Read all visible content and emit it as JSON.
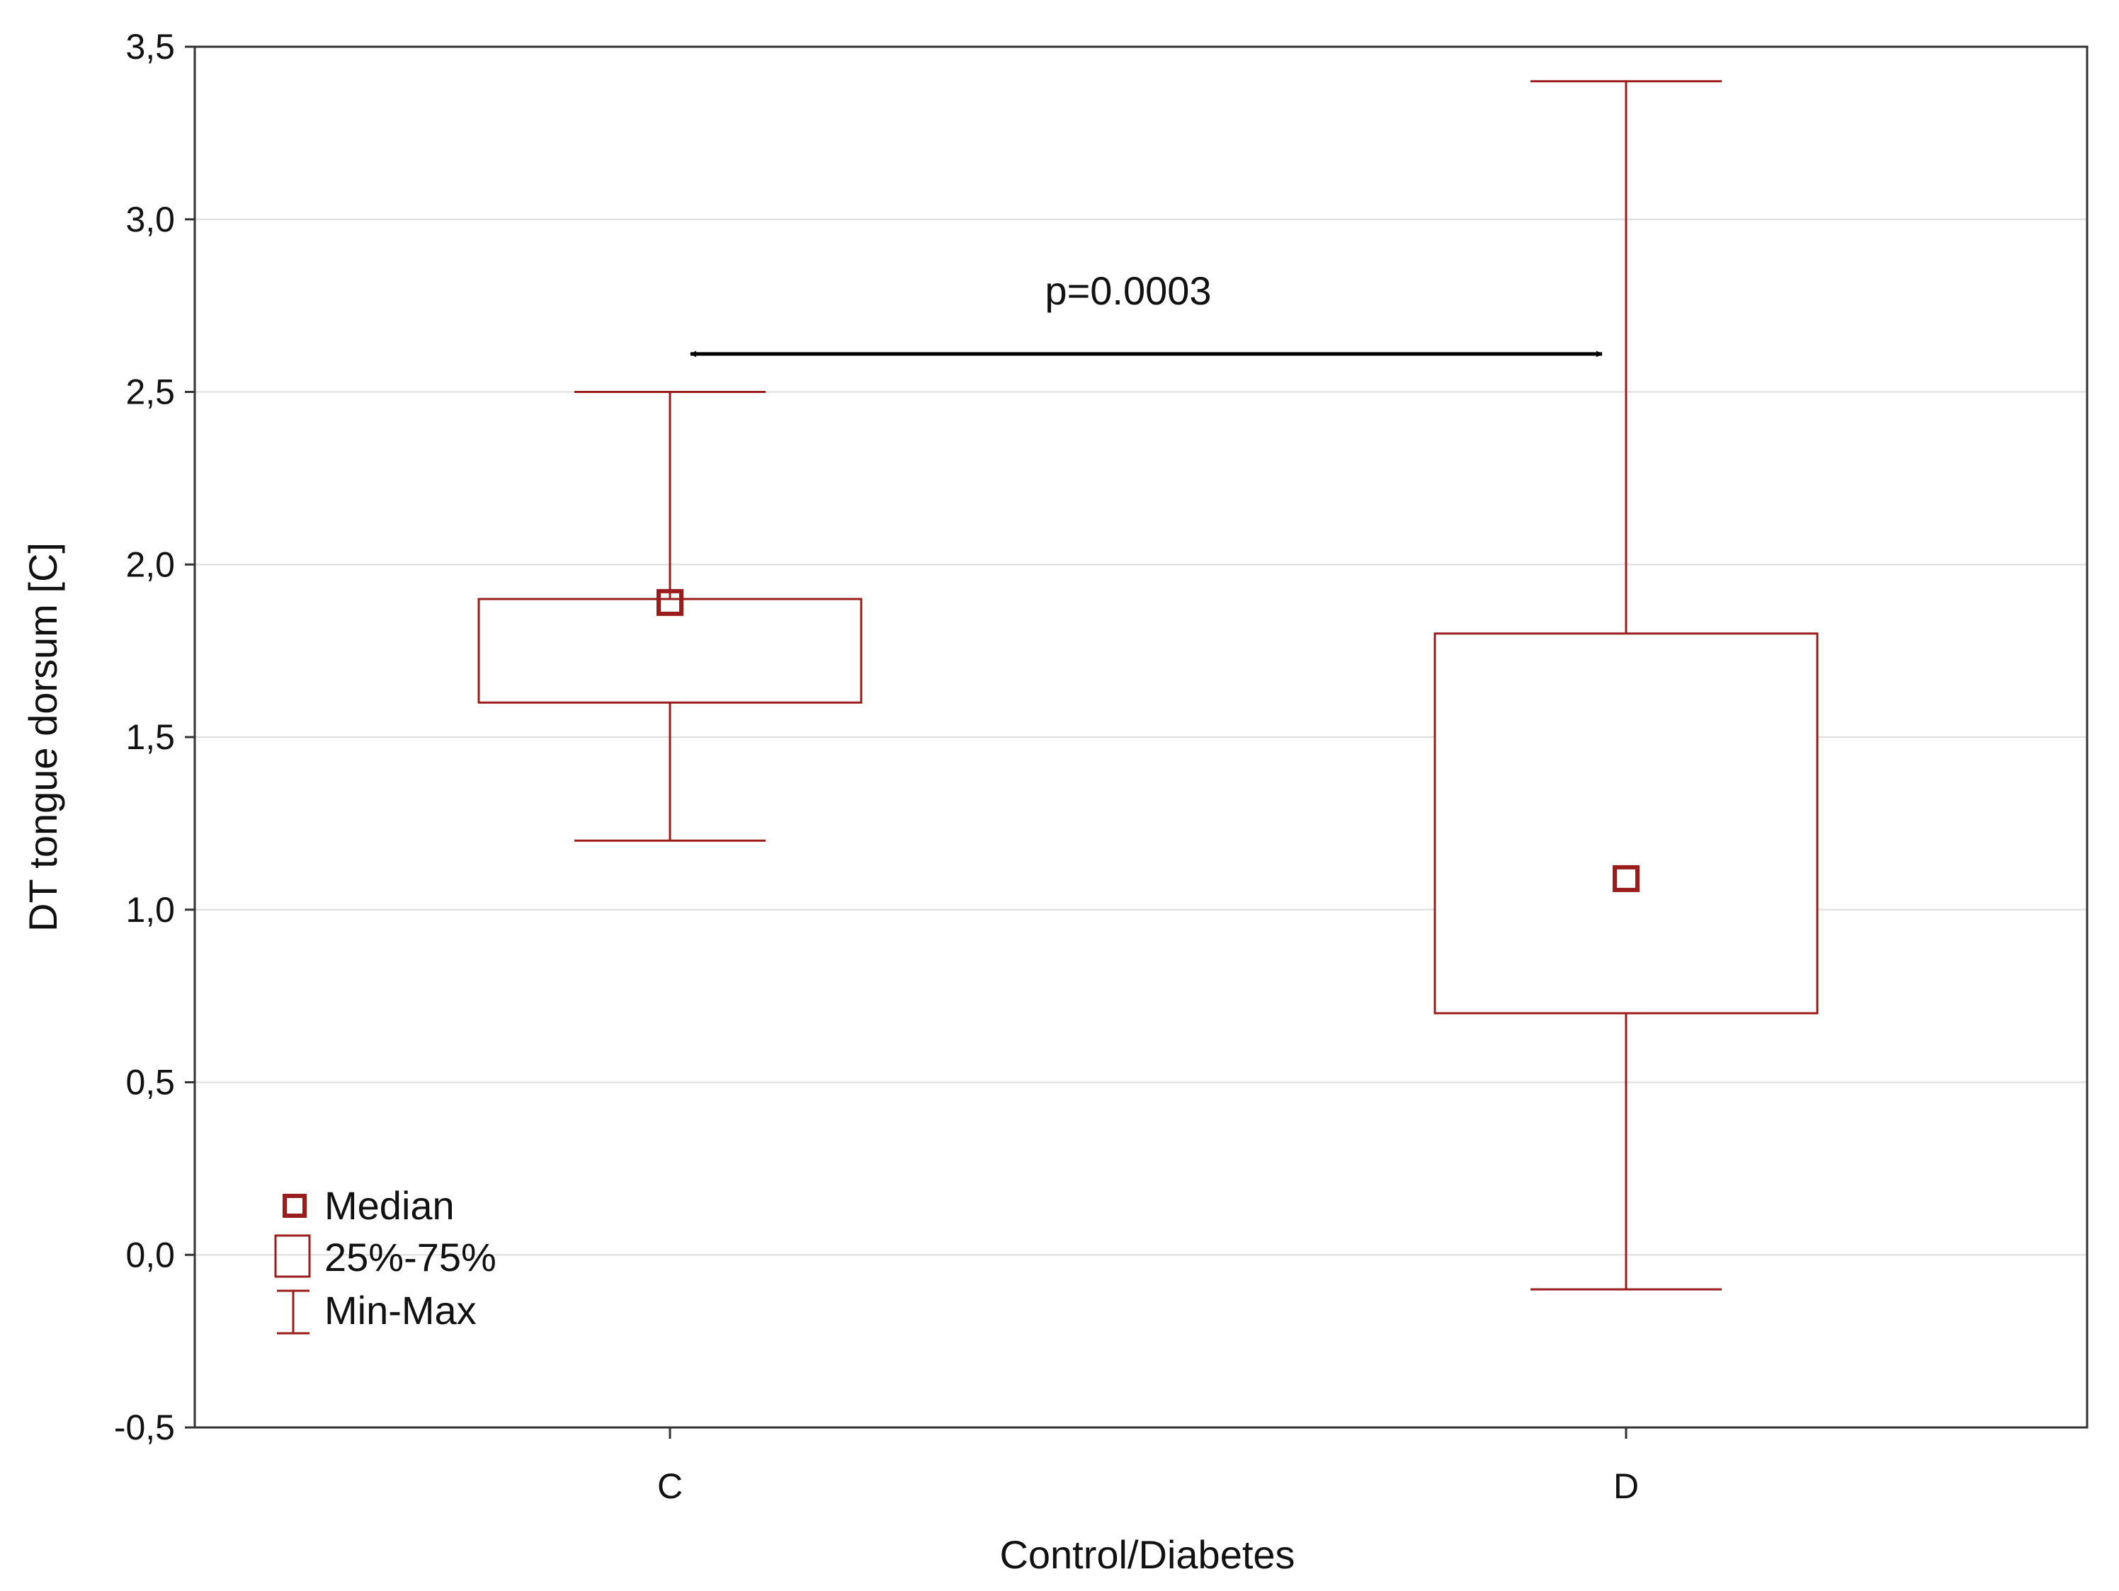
{
  "chart_data": {
    "type": "boxplot",
    "xlabel": "Control/Diabetes",
    "ylabel": "DT tongue dorsum [C]",
    "ylim": [
      -0.5,
      3.5
    ],
    "yticks": [
      -0.5,
      0.0,
      0.5,
      1.0,
      1.5,
      2.0,
      2.5,
      3.0,
      3.5
    ],
    "ytick_labels": [
      "-0,5",
      "0,0",
      "0,5",
      "1,0",
      "1,5",
      "2,0",
      "2,5",
      "3,0",
      "3,5"
    ],
    "grid": true,
    "categories": [
      "C",
      "D"
    ],
    "boxes": [
      {
        "category": "C",
        "min": 1.2,
        "q1": 1.6,
        "median": 1.89,
        "q3": 1.9,
        "max": 2.5
      },
      {
        "category": "D",
        "min": -0.1,
        "q1": 0.7,
        "median": 1.09,
        "q3": 1.8,
        "max": 3.4
      }
    ],
    "annotation": {
      "text": "p=0.0003",
      "y": 2.61
    },
    "legend": {
      "placement": "bottom-left",
      "items": [
        "Median",
        "25%-75%",
        "Min-Max"
      ]
    },
    "colors": {
      "series": "#9b1c1c",
      "axis": "#333333",
      "grid": "#dddddd",
      "arrow": "#000000"
    }
  }
}
